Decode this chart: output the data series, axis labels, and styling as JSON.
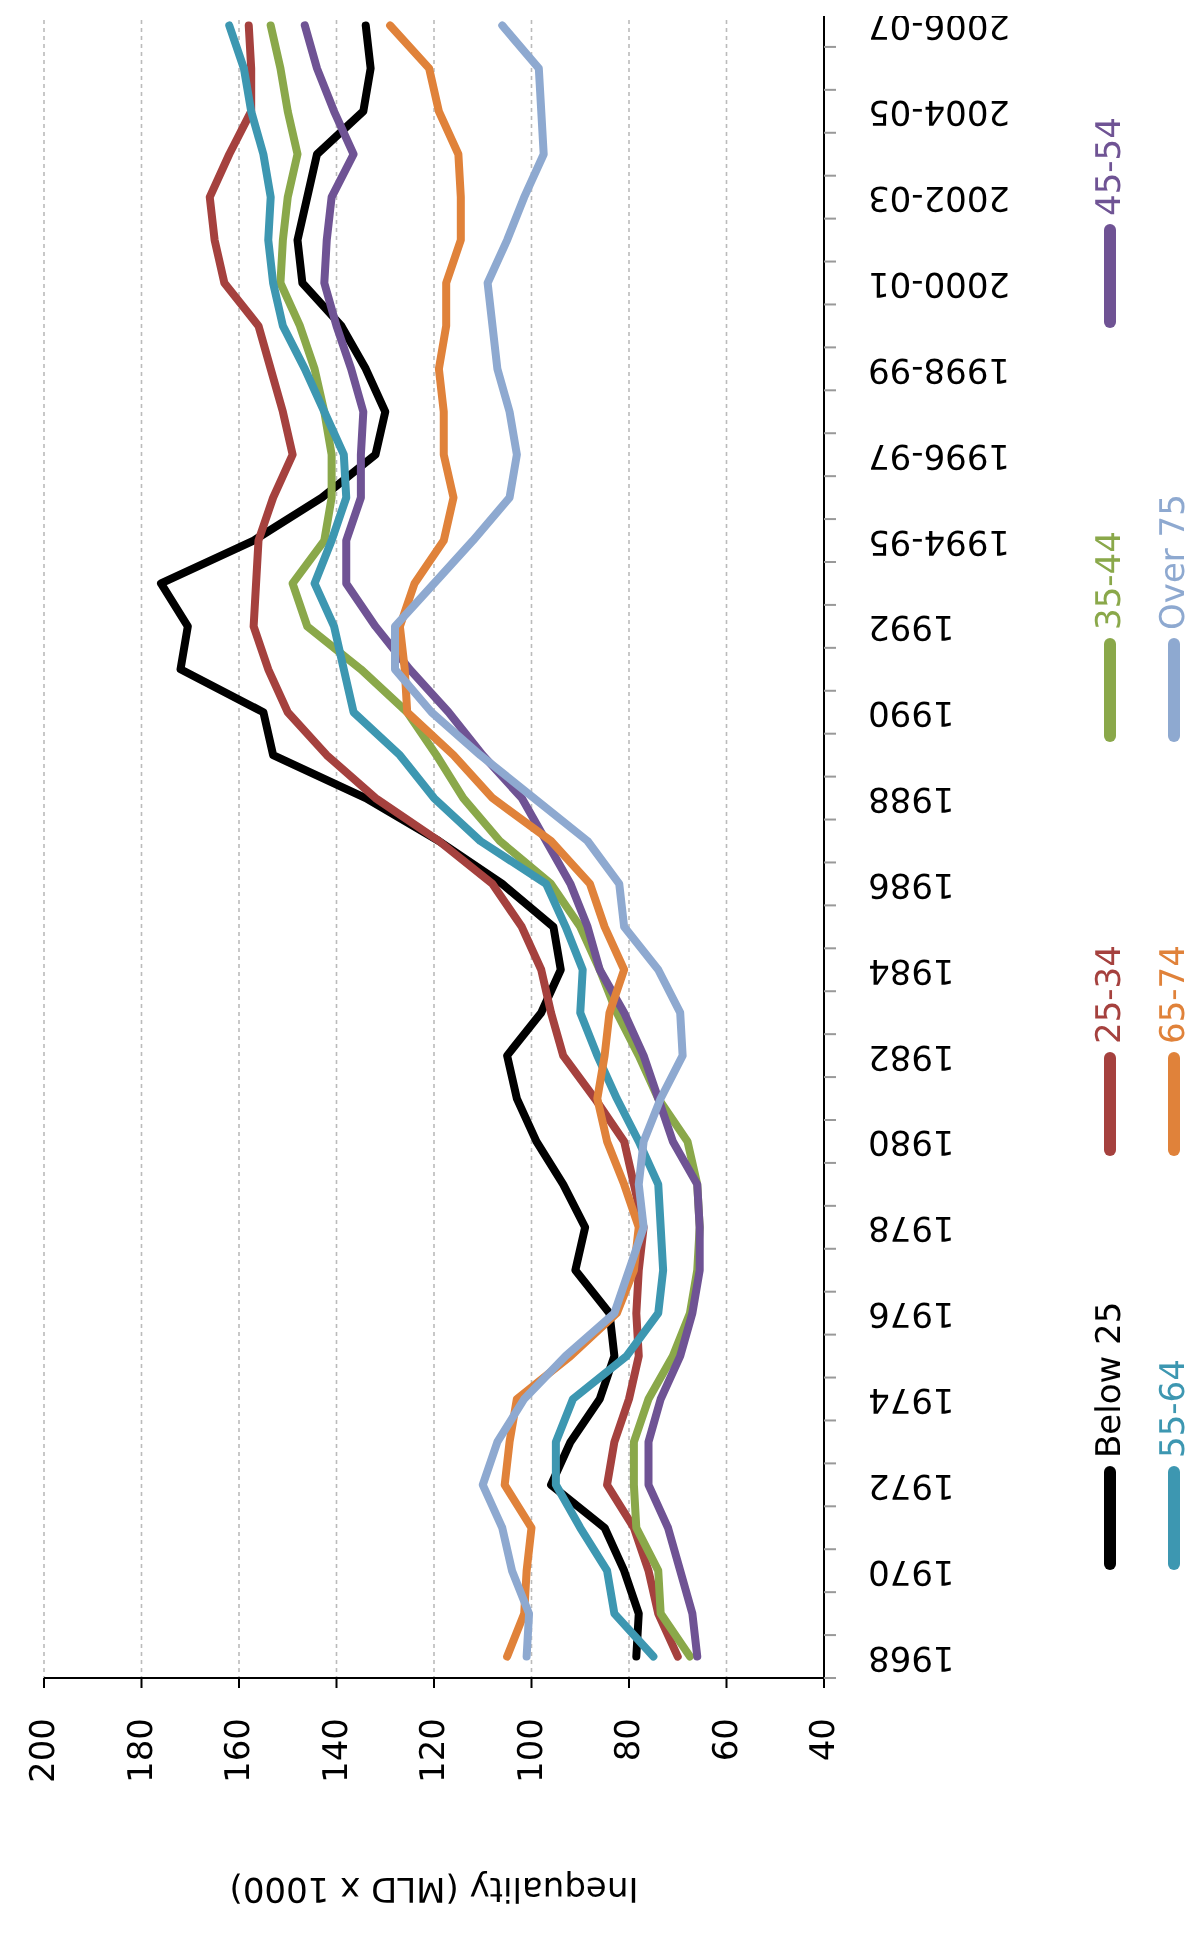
{
  "chart_data": {
    "type": "line",
    "orientation": "horizontal",
    "xlabel": "Inequality (MLD x 1000)",
    "categories": [
      "2006-07",
      null,
      "2004-05",
      null,
      "2002-03",
      null,
      "2000-01",
      null,
      "1998-99",
      null,
      "1996-97",
      null,
      "1994-95",
      null,
      "1992",
      null,
      "1990",
      null,
      "1988",
      null,
      "1986",
      null,
      "1984",
      null,
      "1982",
      null,
      "1980",
      null,
      "1978",
      null,
      "1976",
      null,
      "1974",
      null,
      "1972",
      null,
      "1970",
      null,
      "1968"
    ],
    "xlim": [
      200,
      40
    ],
    "xticks": [
      200,
      180,
      160,
      140,
      120,
      100,
      80,
      60,
      40
    ],
    "grid": "x",
    "legend": "right",
    "series": [
      {
        "name": "Below 25",
        "color": "#000000",
        "values": [
          134,
          133,
          134.5,
          144,
          146,
          148,
          147,
          139,
          134,
          130,
          132,
          143,
          157,
          176,
          170.5,
          172,
          155,
          153,
          134,
          119,
          106,
          95.5,
          94,
          98,
          105,
          103,
          99,
          93.5,
          89,
          91,
          84,
          83,
          86,
          92,
          96,
          85,
          81,
          78,
          78.5
        ]
      },
      {
        "name": "25-34",
        "color": "#a5413e",
        "values": [
          158,
          157.5,
          157.5,
          162,
          166,
          165,
          163,
          156,
          153.5,
          151,
          149,
          153,
          156,
          156.5,
          157,
          154,
          150,
          142,
          132,
          119,
          108,
          102,
          98,
          96,
          93.5,
          87,
          81,
          79,
          77,
          78,
          78.5,
          78,
          80,
          83,
          84.5,
          79,
          76,
          74,
          70
        ]
      },
      {
        "name": "35-44",
        "color": "#8aa84a",
        "values": [
          153.5,
          151.5,
          150,
          148,
          150,
          151,
          151.5,
          147.5,
          144.5,
          142.5,
          141,
          141,
          142.5,
          149,
          146,
          135,
          125.5,
          119.5,
          114,
          106.5,
          96,
          90,
          86,
          82.5,
          78,
          74,
          68,
          66,
          65.5,
          66,
          67.5,
          71,
          76,
          79,
          79,
          78.5,
          74,
          73.5,
          67.5
        ]
      },
      {
        "name": "45-54",
        "color": "#6f5394",
        "values": [
          146.5,
          144,
          140.5,
          136.5,
          141,
          142,
          142.5,
          140,
          137,
          134.5,
          135,
          135,
          138,
          138,
          132,
          125,
          117,
          110,
          102,
          97,
          92,
          88.5,
          86,
          81,
          77,
          74,
          71,
          66,
          65.5,
          65.5,
          67,
          69.5,
          73.5,
          76,
          76,
          72,
          69.5,
          67,
          66
        ]
      },
      {
        "name": "55-64",
        "color": "#3d97b1",
        "values": [
          162,
          159,
          157.5,
          155,
          153.5,
          154,
          153,
          151,
          146.5,
          142.5,
          138.5,
          138,
          141,
          144.5,
          140.5,
          138.5,
          136.5,
          127,
          120,
          110.5,
          97,
          93,
          89.5,
          90,
          86.5,
          82.5,
          78,
          74,
          73.5,
          73,
          74,
          80.5,
          91.5,
          95,
          95,
          90,
          84.5,
          83,
          75
        ]
      },
      {
        "name": "65-74",
        "color": "#e0823a",
        "values": [
          129,
          121,
          119,
          115,
          114.5,
          114.5,
          117.5,
          117.5,
          119,
          118,
          118,
          116,
          118,
          124,
          127,
          126,
          125.5,
          116,
          108,
          96,
          88,
          85,
          81,
          84,
          85,
          86.5,
          84.5,
          81,
          78,
          79,
          82.5,
          92,
          103,
          104.5,
          105.5,
          100,
          101,
          101.5,
          105
        ]
      },
      {
        "name": "Over 75",
        "color": "#8ea9d0",
        "values": [
          106,
          98.5,
          98,
          97.5,
          101.5,
          105,
          109,
          108,
          107,
          104.5,
          103,
          104.5,
          112,
          120,
          128,
          128,
          120.5,
          110.5,
          99.5,
          88.5,
          82,
          81,
          74,
          69.5,
          69,
          73.5,
          77,
          78,
          77,
          80,
          83,
          93,
          101.5,
          107,
          110,
          106,
          104,
          100.5,
          101
        ]
      }
    ]
  }
}
